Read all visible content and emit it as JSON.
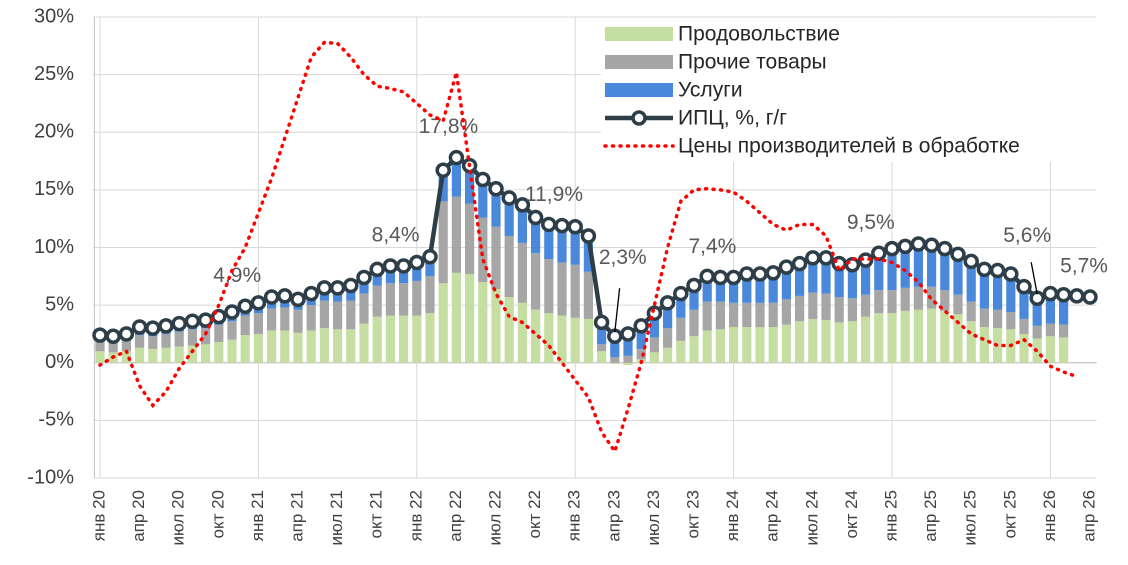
{
  "chart_data": {
    "type": "bar",
    "categories": [
      "янв 20",
      null,
      null,
      "апр 20",
      null,
      null,
      "июл 20",
      null,
      null,
      "окт 20",
      null,
      null,
      "янв 21",
      null,
      null,
      "апр 21",
      null,
      null,
      "июл 21",
      null,
      null,
      "окт 21",
      null,
      null,
      "янв 22",
      null,
      null,
      "апр 22",
      null,
      null,
      "июл 22",
      null,
      null,
      "окт 22",
      null,
      null,
      "янв 23",
      null,
      null,
      "апр 23",
      null,
      null,
      "июл 23",
      null,
      null,
      "окт 23",
      null,
      null,
      "янв 24",
      null,
      null,
      "апр 24",
      null,
      null,
      "июл 24",
      null,
      null,
      "окт 24",
      null,
      null,
      "янв 25",
      null,
      null,
      "апр 25",
      null,
      null,
      "июл 25",
      null,
      null,
      "окт 25",
      null,
      null,
      "янв 26",
      null,
      null,
      "апр 26"
    ],
    "series": [
      {
        "name": "Продовольствие",
        "type": "bar",
        "color": "#c5dea2",
        "values": [
          1.0,
          0.9,
          1.0,
          1.3,
          1.2,
          1.3,
          1.4,
          1.5,
          1.6,
          1.8,
          2.0,
          2.4,
          2.5,
          2.8,
          2.8,
          2.6,
          2.8,
          3.0,
          2.9,
          2.9,
          3.4,
          4.0,
          4.1,
          4.1,
          4.1,
          4.3,
          6.9,
          7.8,
          7.7,
          7.0,
          6.4,
          5.7,
          5.2,
          4.6,
          4.3,
          4.1,
          3.9,
          3.8,
          1.0,
          -0.1,
          -0.2,
          0.3,
          0.9,
          1.3,
          1.9,
          2.3,
          2.8,
          2.9,
          3.1,
          3.1,
          3.1,
          3.1,
          3.3,
          3.6,
          3.8,
          3.7,
          3.5,
          3.6,
          4.0,
          4.3,
          4.3,
          4.5,
          4.6,
          4.7,
          4.5,
          4.2,
          3.6,
          3.1,
          3.0,
          2.9,
          2.5,
          2.1,
          2.3,
          2.2,
          null,
          null
        ]
      },
      {
        "name": "Прочие товары",
        "type": "bar",
        "color": "#a6a6a6",
        "values": [
          0.8,
          0.8,
          0.9,
          1.1,
          1.1,
          1.2,
          1.3,
          1.4,
          1.4,
          1.5,
          1.6,
          1.7,
          1.8,
          1.9,
          2.0,
          2.0,
          2.2,
          2.4,
          2.4,
          2.5,
          2.6,
          2.7,
          2.8,
          2.8,
          3.0,
          3.2,
          7.1,
          6.6,
          6.1,
          5.6,
          5.4,
          5.3,
          5.2,
          4.9,
          4.7,
          4.6,
          4.6,
          4.1,
          0.6,
          0.5,
          0.6,
          0.9,
          1.3,
          1.7,
          2.0,
          2.3,
          2.5,
          2.4,
          2.1,
          2.1,
          2.1,
          2.1,
          2.2,
          2.2,
          2.3,
          2.3,
          2.2,
          2.0,
          1.9,
          2.0,
          2.0,
          2.0,
          2.0,
          1.9,
          1.8,
          1.7,
          1.7,
          1.6,
          1.6,
          1.5,
          1.3,
          1.1,
          1.1,
          1.1,
          null,
          null
        ]
      },
      {
        "name": "Услуги",
        "type": "bar",
        "color": "#4a88dc",
        "values": [
          0.6,
          0.6,
          0.6,
          0.7,
          0.7,
          0.7,
          0.7,
          0.7,
          0.7,
          0.7,
          0.8,
          0.8,
          0.9,
          1.0,
          1.0,
          0.9,
          1.0,
          1.1,
          1.2,
          1.3,
          1.4,
          1.4,
          1.5,
          1.5,
          1.6,
          1.7,
          2.7,
          3.4,
          3.3,
          3.3,
          3.3,
          3.3,
          3.3,
          3.1,
          3.0,
          3.2,
          3.3,
          3.1,
          1.9,
          1.9,
          2.1,
          2.0,
          2.1,
          2.2,
          2.1,
          2.1,
          2.2,
          2.1,
          2.2,
          2.5,
          2.5,
          2.6,
          2.8,
          2.8,
          3.0,
          3.1,
          2.9,
          2.9,
          3.0,
          3.2,
          3.6,
          3.6,
          3.7,
          3.6,
          3.6,
          3.5,
          3.5,
          3.4,
          3.4,
          3.3,
          2.8,
          2.4,
          2.6,
          2.6,
          null,
          null
        ]
      },
      {
        "name": "ИПЦ, %, г/г",
        "type": "line",
        "color": "#2e3e48",
        "marker": true,
        "values": [
          2.4,
          2.3,
          2.5,
          3.1,
          3.0,
          3.2,
          3.4,
          3.6,
          3.7,
          4.0,
          4.4,
          4.9,
          5.2,
          5.7,
          5.8,
          5.5,
          6.0,
          6.5,
          6.5,
          6.7,
          7.4,
          8.1,
          8.4,
          8.4,
          8.7,
          9.2,
          16.7,
          17.8,
          17.1,
          15.9,
          15.1,
          14.3,
          13.7,
          12.6,
          12.0,
          11.9,
          11.8,
          11.0,
          3.5,
          2.3,
          2.5,
          3.2,
          4.3,
          5.2,
          6.0,
          6.7,
          7.5,
          7.4,
          7.4,
          7.7,
          7.7,
          7.8,
          8.3,
          8.6,
          9.1,
          9.1,
          8.6,
          8.5,
          8.9,
          9.5,
          9.9,
          10.1,
          10.3,
          10.2,
          9.9,
          9.4,
          8.8,
          8.1,
          8.0,
          7.7,
          6.6,
          5.6,
          6.0,
          5.9,
          5.8,
          5.7
        ],
        "value_labels": [
          null,
          null,
          null,
          null,
          null,
          null,
          null,
          null,
          null,
          null,
          null,
          "4,9%",
          null,
          null,
          null,
          null,
          null,
          null,
          null,
          null,
          null,
          null,
          null,
          "8,4%",
          null,
          null,
          null,
          "17,8%",
          null,
          null,
          null,
          null,
          null,
          null,
          null,
          "11,9%",
          null,
          null,
          null,
          "2,3%",
          null,
          null,
          null,
          null,
          null,
          null,
          null,
          "7,4%",
          null,
          null,
          null,
          null,
          null,
          null,
          null,
          null,
          null,
          null,
          null,
          "9,5%",
          null,
          null,
          null,
          null,
          null,
          null,
          null,
          null,
          null,
          null,
          null,
          "5,6%",
          null,
          null,
          null,
          "5,7%"
        ]
      },
      {
        "name": "Цены производителей в обработке",
        "type": "line",
        "color": "#ff0000",
        "dash": "dotted",
        "values": [
          -0.2,
          0.5,
          1.0,
          -2.0,
          -3.7,
          -2.5,
          -0.5,
          1.0,
          2.5,
          5.0,
          8.0,
          10.0,
          13.0,
          16.0,
          19.5,
          23.0,
          26.5,
          27.8,
          27.7,
          26.5,
          25.0,
          24.0,
          23.8,
          23.5,
          22.5,
          21.5,
          21.0,
          25.2,
          17.0,
          9.0,
          6.0,
          4.0,
          3.5,
          2.5,
          1.5,
          0.0,
          -1.5,
          -3.0,
          -6.0,
          -7.7,
          -4.0,
          0.0,
          5.0,
          10.0,
          14.0,
          15.0,
          15.1,
          15.0,
          14.8,
          14.0,
          13.0,
          12.0,
          11.5,
          12.0,
          12.0,
          11.0,
          8.0,
          9.0,
          9.0,
          9.0,
          8.7,
          8.0,
          7.0,
          5.5,
          4.5,
          3.5,
          2.5,
          2.0,
          1.5,
          1.5,
          2.0,
          1.0,
          -0.3,
          -0.8,
          -1.2,
          null
        ]
      }
    ],
    "ylim": [
      -10,
      30
    ],
    "yticks": [
      {
        "value": -10,
        "label": "-10%"
      },
      {
        "value": -5,
        "label": "-5%"
      },
      {
        "value": 0,
        "label": "0%"
      },
      {
        "value": 5,
        "label": "5%"
      },
      {
        "value": 10,
        "label": "10%"
      },
      {
        "value": 15,
        "label": "15%"
      },
      {
        "value": 20,
        "label": "20%"
      },
      {
        "value": 25,
        "label": "25%"
      },
      {
        "value": 30,
        "label": "30%"
      }
    ],
    "grid": true,
    "legend": "top-right"
  }
}
